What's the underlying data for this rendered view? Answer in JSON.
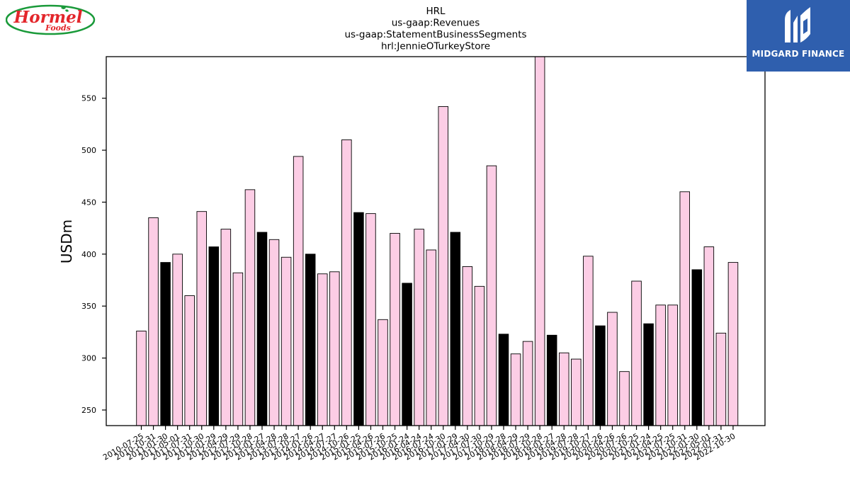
{
  "logos": {
    "left_brand": "Hormel",
    "left_sub": "Foods",
    "right_brand": "MIDGARD FINANCE"
  },
  "colors": {
    "bar_default": "#fccde5",
    "bar_highlight": "#000000",
    "bar_edge": "#000000",
    "hormel_red": "#e3262b",
    "hormel_green": "#1a9a3a",
    "midgard_blue": "#2f5fae"
  },
  "chart_data": {
    "type": "bar",
    "title_lines": [
      "HRL",
      "us-gaap:Revenues",
      "us-gaap:StatementBusinessSegments",
      "hrl:JennieOTurkeyStore"
    ],
    "xlabel": "",
    "ylabel": "USDm",
    "ylim": [
      235,
      590
    ],
    "yticks": [
      250,
      300,
      350,
      400,
      450,
      500,
      550
    ],
    "grid": false,
    "categories": [
      "2010-07-25",
      "2010-10-31",
      "2011-01-30",
      "2011-05-01",
      "2011-07-31",
      "2011-10-30",
      "2012-01-29",
      "2012-04-29",
      "2012-07-29",
      "2012-10-28",
      "2013-01-27",
      "2013-04-28",
      "2013-07-28",
      "2013-10-27",
      "2014-01-26",
      "2014-04-27",
      "2014-07-27",
      "2014-10-26",
      "2015-01-25",
      "2015-04-26",
      "2015-07-26",
      "2015-10-25",
      "2016-01-24",
      "2016-04-24",
      "2016-07-24",
      "2016-10-30",
      "2017-01-29",
      "2017-04-30",
      "2017-07-30",
      "2017-10-29",
      "2018-01-28",
      "2018-04-29",
      "2018-07-29",
      "2018-10-28",
      "2019-01-27",
      "2019-04-28",
      "2019-07-28",
      "2019-10-27",
      "2020-01-26",
      "2020-04-26",
      "2020-07-26",
      "2020-10-25",
      "2021-01-24",
      "2021-04-25",
      "2021-07-25",
      "2021-10-31",
      "2022-01-30",
      "2022-05-01",
      "2022-07-31",
      "2022-10-30"
    ],
    "values": [
      326,
      435,
      392,
      400,
      360,
      441,
      407,
      424,
      382,
      462,
      421,
      414,
      397,
      494,
      400,
      381,
      383,
      510,
      440,
      439,
      337,
      420,
      372,
      424,
      404,
      542,
      421,
      388,
      369,
      485,
      323,
      304,
      316,
      595,
      322,
      305,
      299,
      398,
      331,
      344,
      287,
      374,
      333,
      351,
      351,
      460,
      385,
      407,
      324,
      392
    ],
    "highlight_indices": [
      2,
      6,
      10,
      14,
      18,
      22,
      26,
      30,
      34,
      38,
      42,
      46
    ]
  }
}
